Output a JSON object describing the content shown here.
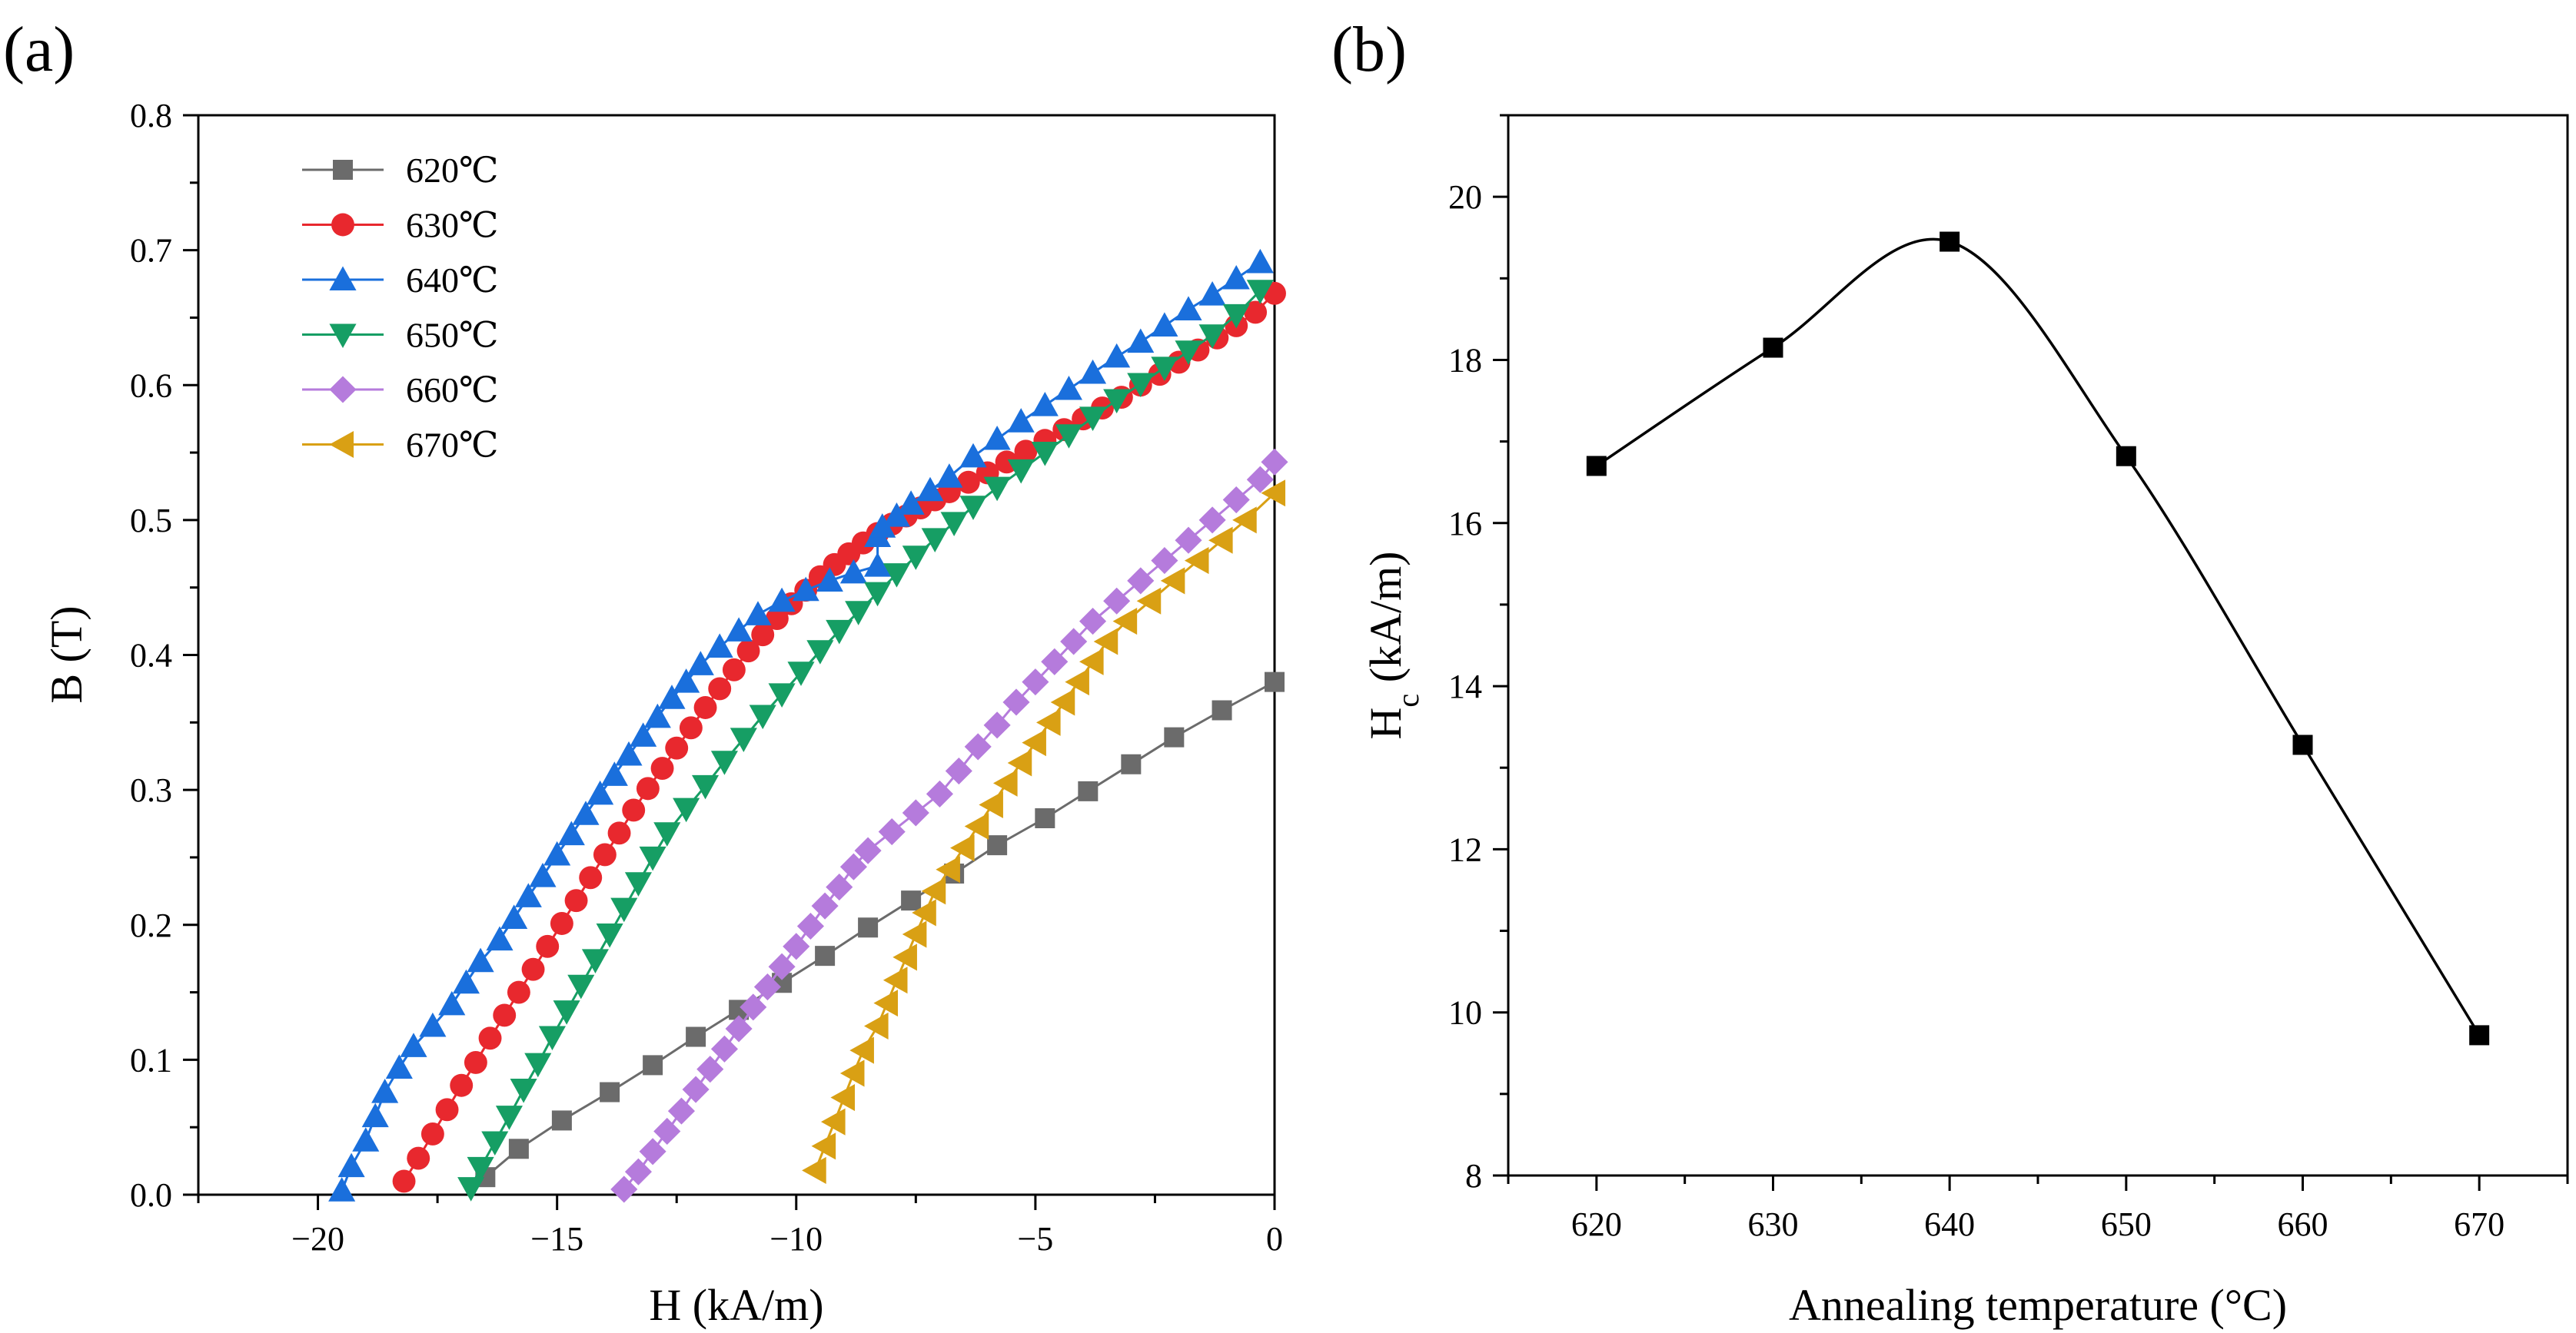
{
  "panel_labels": [
    "(a)",
    "(b)"
  ],
  "chart_data": [
    {
      "type": "line",
      "panel": "(a)",
      "xlabel": "H (kA/m)",
      "ylabel": "B (T)",
      "xlim": [
        -22.5,
        0
      ],
      "ylim": [
        0,
        0.8
      ],
      "xticks": [
        -20,
        -15,
        -10,
        -5,
        0
      ],
      "xtick_labels": [
        "−20",
        "−15",
        "−10",
        "−5",
        "0"
      ],
      "yticks": [
        0.0,
        0.1,
        0.2,
        0.3,
        0.4,
        0.5,
        0.6,
        0.7,
        0.8
      ],
      "ytick_labels": [
        "0.0",
        "0.1",
        "0.2",
        "0.3",
        "0.4",
        "0.5",
        "0.6",
        "0.7",
        "0.8"
      ],
      "legend_position": "top-left",
      "series": [
        {
          "name": "620℃",
          "color": "#6b6b6b",
          "marker": "square",
          "x": [
            -16.5,
            -15.8,
            -14.9,
            -13.9,
            -13.0,
            -12.1,
            -11.2,
            -10.3,
            -9.4,
            -8.5,
            -7.6,
            -6.7,
            -5.8,
            -4.8,
            -3.9,
            -3.0,
            -2.1,
            -1.1,
            0.0
          ],
          "y": [
            0.013,
            0.034,
            0.055,
            0.076,
            0.096,
            0.117,
            0.137,
            0.157,
            0.177,
            0.198,
            0.218,
            0.238,
            0.259,
            0.279,
            0.299,
            0.319,
            0.339,
            0.359,
            0.38
          ]
        },
        {
          "name": "630℃",
          "color": "#e8282e",
          "marker": "circle",
          "x": [
            -18.2,
            -17.9,
            -17.6,
            -17.3,
            -17.0,
            -16.7,
            -16.4,
            -16.1,
            -15.8,
            -15.5,
            -15.2,
            -14.9,
            -14.6,
            -14.3,
            -14.0,
            -13.7,
            -13.4,
            -13.1,
            -12.8,
            -12.5,
            -12.2,
            -11.9,
            -11.6,
            -11.3,
            -11.0,
            -10.7,
            -10.4,
            -10.1,
            -9.8,
            -9.5,
            -9.2,
            -8.9,
            -8.6,
            -8.3,
            -8.0,
            -7.7,
            -7.4,
            -7.1,
            -6.8,
            -6.4,
            -6.0,
            -5.6,
            -5.2,
            -4.8,
            -4.4,
            -4.0,
            -3.6,
            -3.2,
            -2.8,
            -2.4,
            -2.0,
            -1.6,
            -1.2,
            -0.8,
            -0.4,
            0.0
          ],
          "y": [
            0.01,
            0.027,
            0.045,
            0.063,
            0.081,
            0.098,
            0.116,
            0.133,
            0.15,
            0.167,
            0.184,
            0.201,
            0.218,
            0.235,
            0.252,
            0.268,
            0.285,
            0.301,
            0.316,
            0.331,
            0.346,
            0.361,
            0.375,
            0.389,
            0.403,
            0.415,
            0.427,
            0.438,
            0.448,
            0.458,
            0.467,
            0.475,
            0.483,
            0.49,
            0.497,
            0.503,
            0.509,
            0.515,
            0.521,
            0.528,
            0.535,
            0.543,
            0.551,
            0.559,
            0.567,
            0.575,
            0.583,
            0.591,
            0.6,
            0.608,
            0.617,
            0.626,
            0.635,
            0.644,
            0.654,
            0.668
          ]
        },
        {
          "name": "640℃",
          "color": "#1a6fdc",
          "marker": "triangle-up",
          "x": [
            -19.5,
            -19.3,
            -19.0,
            -18.8,
            -18.6,
            -18.3,
            -18.0,
            -17.6,
            -17.2,
            -16.9,
            -16.6,
            -16.2,
            -15.9,
            -15.6,
            -15.3,
            -15.0,
            -14.7,
            -14.4,
            -14.1,
            -13.8,
            -13.5,
            -13.2,
            -12.9,
            -12.6,
            -12.3,
            -12.0,
            -11.6,
            -11.2,
            -10.8,
            -10.3,
            -9.8,
            -9.3,
            -8.8,
            -8.3,
            -8.3,
            -8.2,
            -7.9,
            -7.6,
            -7.2,
            -6.8,
            -6.3,
            -5.8,
            -5.3,
            -4.8,
            -4.3,
            -3.8,
            -3.3,
            -2.8,
            -2.3,
            -1.8,
            -1.3,
            -0.8,
            -0.3
          ],
          "y": [
            0.003,
            0.021,
            0.04,
            0.058,
            0.076,
            0.094,
            0.11,
            0.125,
            0.141,
            0.157,
            0.173,
            0.189,
            0.205,
            0.221,
            0.236,
            0.252,
            0.267,
            0.282,
            0.297,
            0.311,
            0.326,
            0.34,
            0.354,
            0.368,
            0.38,
            0.393,
            0.406,
            0.418,
            0.43,
            0.44,
            0.448,
            0.455,
            0.461,
            0.466,
            0.488,
            0.495,
            0.503,
            0.512,
            0.522,
            0.532,
            0.547,
            0.56,
            0.573,
            0.585,
            0.597,
            0.609,
            0.621,
            0.632,
            0.644,
            0.656,
            0.667,
            0.679,
            0.691
          ]
        },
        {
          "name": "650℃",
          "color": "#169e64",
          "marker": "triangle-down",
          "x": [
            -16.8,
            -16.6,
            -16.3,
            -16.0,
            -15.7,
            -15.4,
            -15.1,
            -14.8,
            -14.5,
            -14.2,
            -13.9,
            -13.6,
            -13.3,
            -13.0,
            -12.7,
            -12.3,
            -11.9,
            -11.5,
            -11.1,
            -10.7,
            -10.3,
            -9.9,
            -9.5,
            -9.1,
            -8.7,
            -8.3,
            -7.9,
            -7.5,
            -7.1,
            -6.7,
            -6.3,
            -5.8,
            -5.3,
            -4.8,
            -4.3,
            -3.8,
            -3.3,
            -2.8,
            -2.3,
            -1.8,
            -1.3,
            -0.8,
            -0.3
          ],
          "y": [
            0.005,
            0.02,
            0.039,
            0.058,
            0.078,
            0.097,
            0.117,
            0.136,
            0.155,
            0.174,
            0.193,
            0.212,
            0.231,
            0.25,
            0.268,
            0.286,
            0.303,
            0.321,
            0.338,
            0.355,
            0.371,
            0.387,
            0.403,
            0.418,
            0.432,
            0.446,
            0.46,
            0.473,
            0.486,
            0.498,
            0.51,
            0.524,
            0.537,
            0.55,
            0.563,
            0.576,
            0.589,
            0.601,
            0.613,
            0.625,
            0.637,
            0.652,
            0.67
          ]
        },
        {
          "name": "660℃",
          "color": "#b57bdc",
          "marker": "diamond",
          "x": [
            -13.6,
            -13.3,
            -13.0,
            -12.7,
            -12.4,
            -12.1,
            -11.8,
            -11.5,
            -11.2,
            -10.9,
            -10.6,
            -10.3,
            -10.0,
            -9.7,
            -9.4,
            -9.1,
            -8.8,
            -8.5,
            -8.0,
            -7.5,
            -7.0,
            -6.6,
            -6.2,
            -5.8,
            -5.4,
            -5.0,
            -4.6,
            -4.2,
            -3.8,
            -3.3,
            -2.8,
            -2.3,
            -1.8,
            -1.3,
            -0.8,
            -0.3,
            0.0
          ],
          "y": [
            0.004,
            0.017,
            0.032,
            0.047,
            0.062,
            0.078,
            0.093,
            0.108,
            0.123,
            0.139,
            0.154,
            0.169,
            0.184,
            0.199,
            0.214,
            0.228,
            0.243,
            0.255,
            0.269,
            0.283,
            0.297,
            0.314,
            0.332,
            0.348,
            0.365,
            0.38,
            0.395,
            0.41,
            0.425,
            0.44,
            0.455,
            0.47,
            0.485,
            0.5,
            0.515,
            0.53,
            0.543
          ]
        },
        {
          "name": "670℃",
          "color": "#d9a014",
          "marker": "triangle-left",
          "x": [
            -9.6,
            -9.4,
            -9.2,
            -9.0,
            -8.8,
            -8.6,
            -8.3,
            -8.1,
            -7.9,
            -7.7,
            -7.5,
            -7.3,
            -7.1,
            -6.8,
            -6.5,
            -6.2,
            -5.9,
            -5.6,
            -5.3,
            -5.0,
            -4.7,
            -4.4,
            -4.1,
            -3.8,
            -3.5,
            -3.1,
            -2.6,
            -2.1,
            -1.6,
            -1.1,
            -0.6,
            0.0
          ],
          "y": [
            0.018,
            0.036,
            0.054,
            0.072,
            0.09,
            0.107,
            0.125,
            0.142,
            0.159,
            0.176,
            0.193,
            0.209,
            0.225,
            0.241,
            0.257,
            0.273,
            0.289,
            0.305,
            0.32,
            0.335,
            0.35,
            0.365,
            0.38,
            0.395,
            0.41,
            0.425,
            0.44,
            0.455,
            0.47,
            0.485,
            0.5,
            0.52
          ]
        }
      ]
    },
    {
      "type": "line",
      "panel": "(b)",
      "xlabel": "Annealing temperature (°C)",
      "ylabel_main": "H",
      "ylabel_sub": "c",
      "ylabel_rest": " (kA/m)",
      "xlim": [
        615,
        675
      ],
      "ylim": [
        8,
        21
      ],
      "xticks": [
        620,
        630,
        640,
        650,
        660,
        670
      ],
      "xtick_labels": [
        "620",
        "630",
        "640",
        "650",
        "660",
        "670"
      ],
      "yticks": [
        8,
        10,
        12,
        14,
        16,
        18,
        20
      ],
      "ytick_labels": [
        "8",
        "10",
        "12",
        "14",
        "16",
        "18",
        "20"
      ],
      "series": [
        {
          "name": "Hc",
          "color": "#000000",
          "marker": "square",
          "x": [
            620,
            630,
            640,
            650,
            660,
            670
          ],
          "y": [
            16.7,
            18.15,
            19.45,
            16.82,
            13.28,
            9.72
          ]
        }
      ]
    }
  ]
}
